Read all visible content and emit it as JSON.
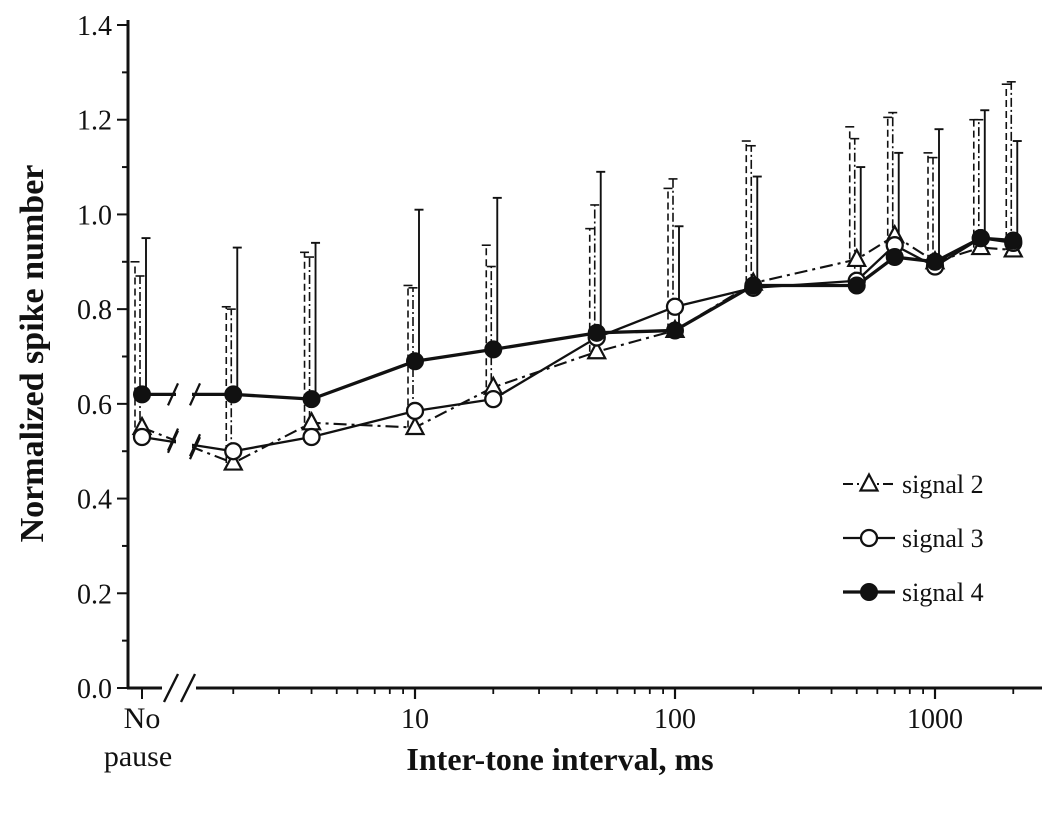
{
  "chart_data": {
    "type": "line",
    "title": "",
    "xlabel": "Inter-tone interval, ms",
    "ylabel": "Normalized spike number",
    "x_axis": {
      "scale": "log",
      "unit": "ms",
      "major_ticks": [
        10,
        100,
        1000
      ],
      "tick_labels": [
        "10",
        "100",
        "1000"
      ],
      "no_pause_label_lines": [
        "No",
        "pause"
      ],
      "axis_break_after_first_point": true
    },
    "y_axis": {
      "min": 0,
      "max": 1.4,
      "major_tick_step": 0.2,
      "minor_tick_step": 0.1,
      "tick_labels": [
        "0.0",
        "0.2",
        "0.4",
        "0.6",
        "0.8",
        "1.0",
        "1.2",
        "1.4"
      ]
    },
    "categories": [
      "No pause",
      2,
      4,
      10,
      20,
      50,
      100,
      200,
      500,
      700,
      1000,
      1500,
      2000
    ],
    "series": [
      {
        "name": "signal 2",
        "marker": "triangle-open",
        "line_style": "dash-dot",
        "values": [
          0.55,
          0.475,
          0.56,
          0.55,
          0.635,
          0.71,
          0.755,
          0.855,
          0.905,
          0.955,
          0.9,
          0.93,
          0.925
        ],
        "upper_error": [
          0.35,
          0.33,
          0.36,
          0.3,
          0.3,
          0.26,
          0.3,
          0.3,
          0.28,
          0.25,
          0.23,
          0.27,
          0.35
        ]
      },
      {
        "name": "signal 3",
        "marker": "circle-open",
        "line_style": "solid",
        "values": [
          0.53,
          0.5,
          0.53,
          0.585,
          0.61,
          0.74,
          0.805,
          0.845,
          0.86,
          0.935,
          0.89,
          0.95,
          0.94
        ],
        "upper_error": [
          0.34,
          0.3,
          0.38,
          0.26,
          0.28,
          0.28,
          0.27,
          0.3,
          0.3,
          0.28,
          0.23,
          0.25,
          0.34
        ]
      },
      {
        "name": "signal 4",
        "marker": "circle-filled",
        "line_style": "solid-thick",
        "values": [
          0.62,
          0.62,
          0.61,
          0.69,
          0.715,
          0.75,
          0.755,
          0.85,
          0.85,
          0.91,
          0.9,
          0.95,
          0.945
        ],
        "upper_error": [
          0.33,
          0.31,
          0.33,
          0.32,
          0.32,
          0.34,
          0.22,
          0.23,
          0.25,
          0.22,
          0.28,
          0.27,
          0.21
        ]
      }
    ],
    "legend": {
      "position": "right-middle",
      "entries": [
        "signal 2",
        "signal 3",
        "signal 4"
      ]
    },
    "colors": {
      "ink": "#111111",
      "background": "#ffffff"
    }
  }
}
